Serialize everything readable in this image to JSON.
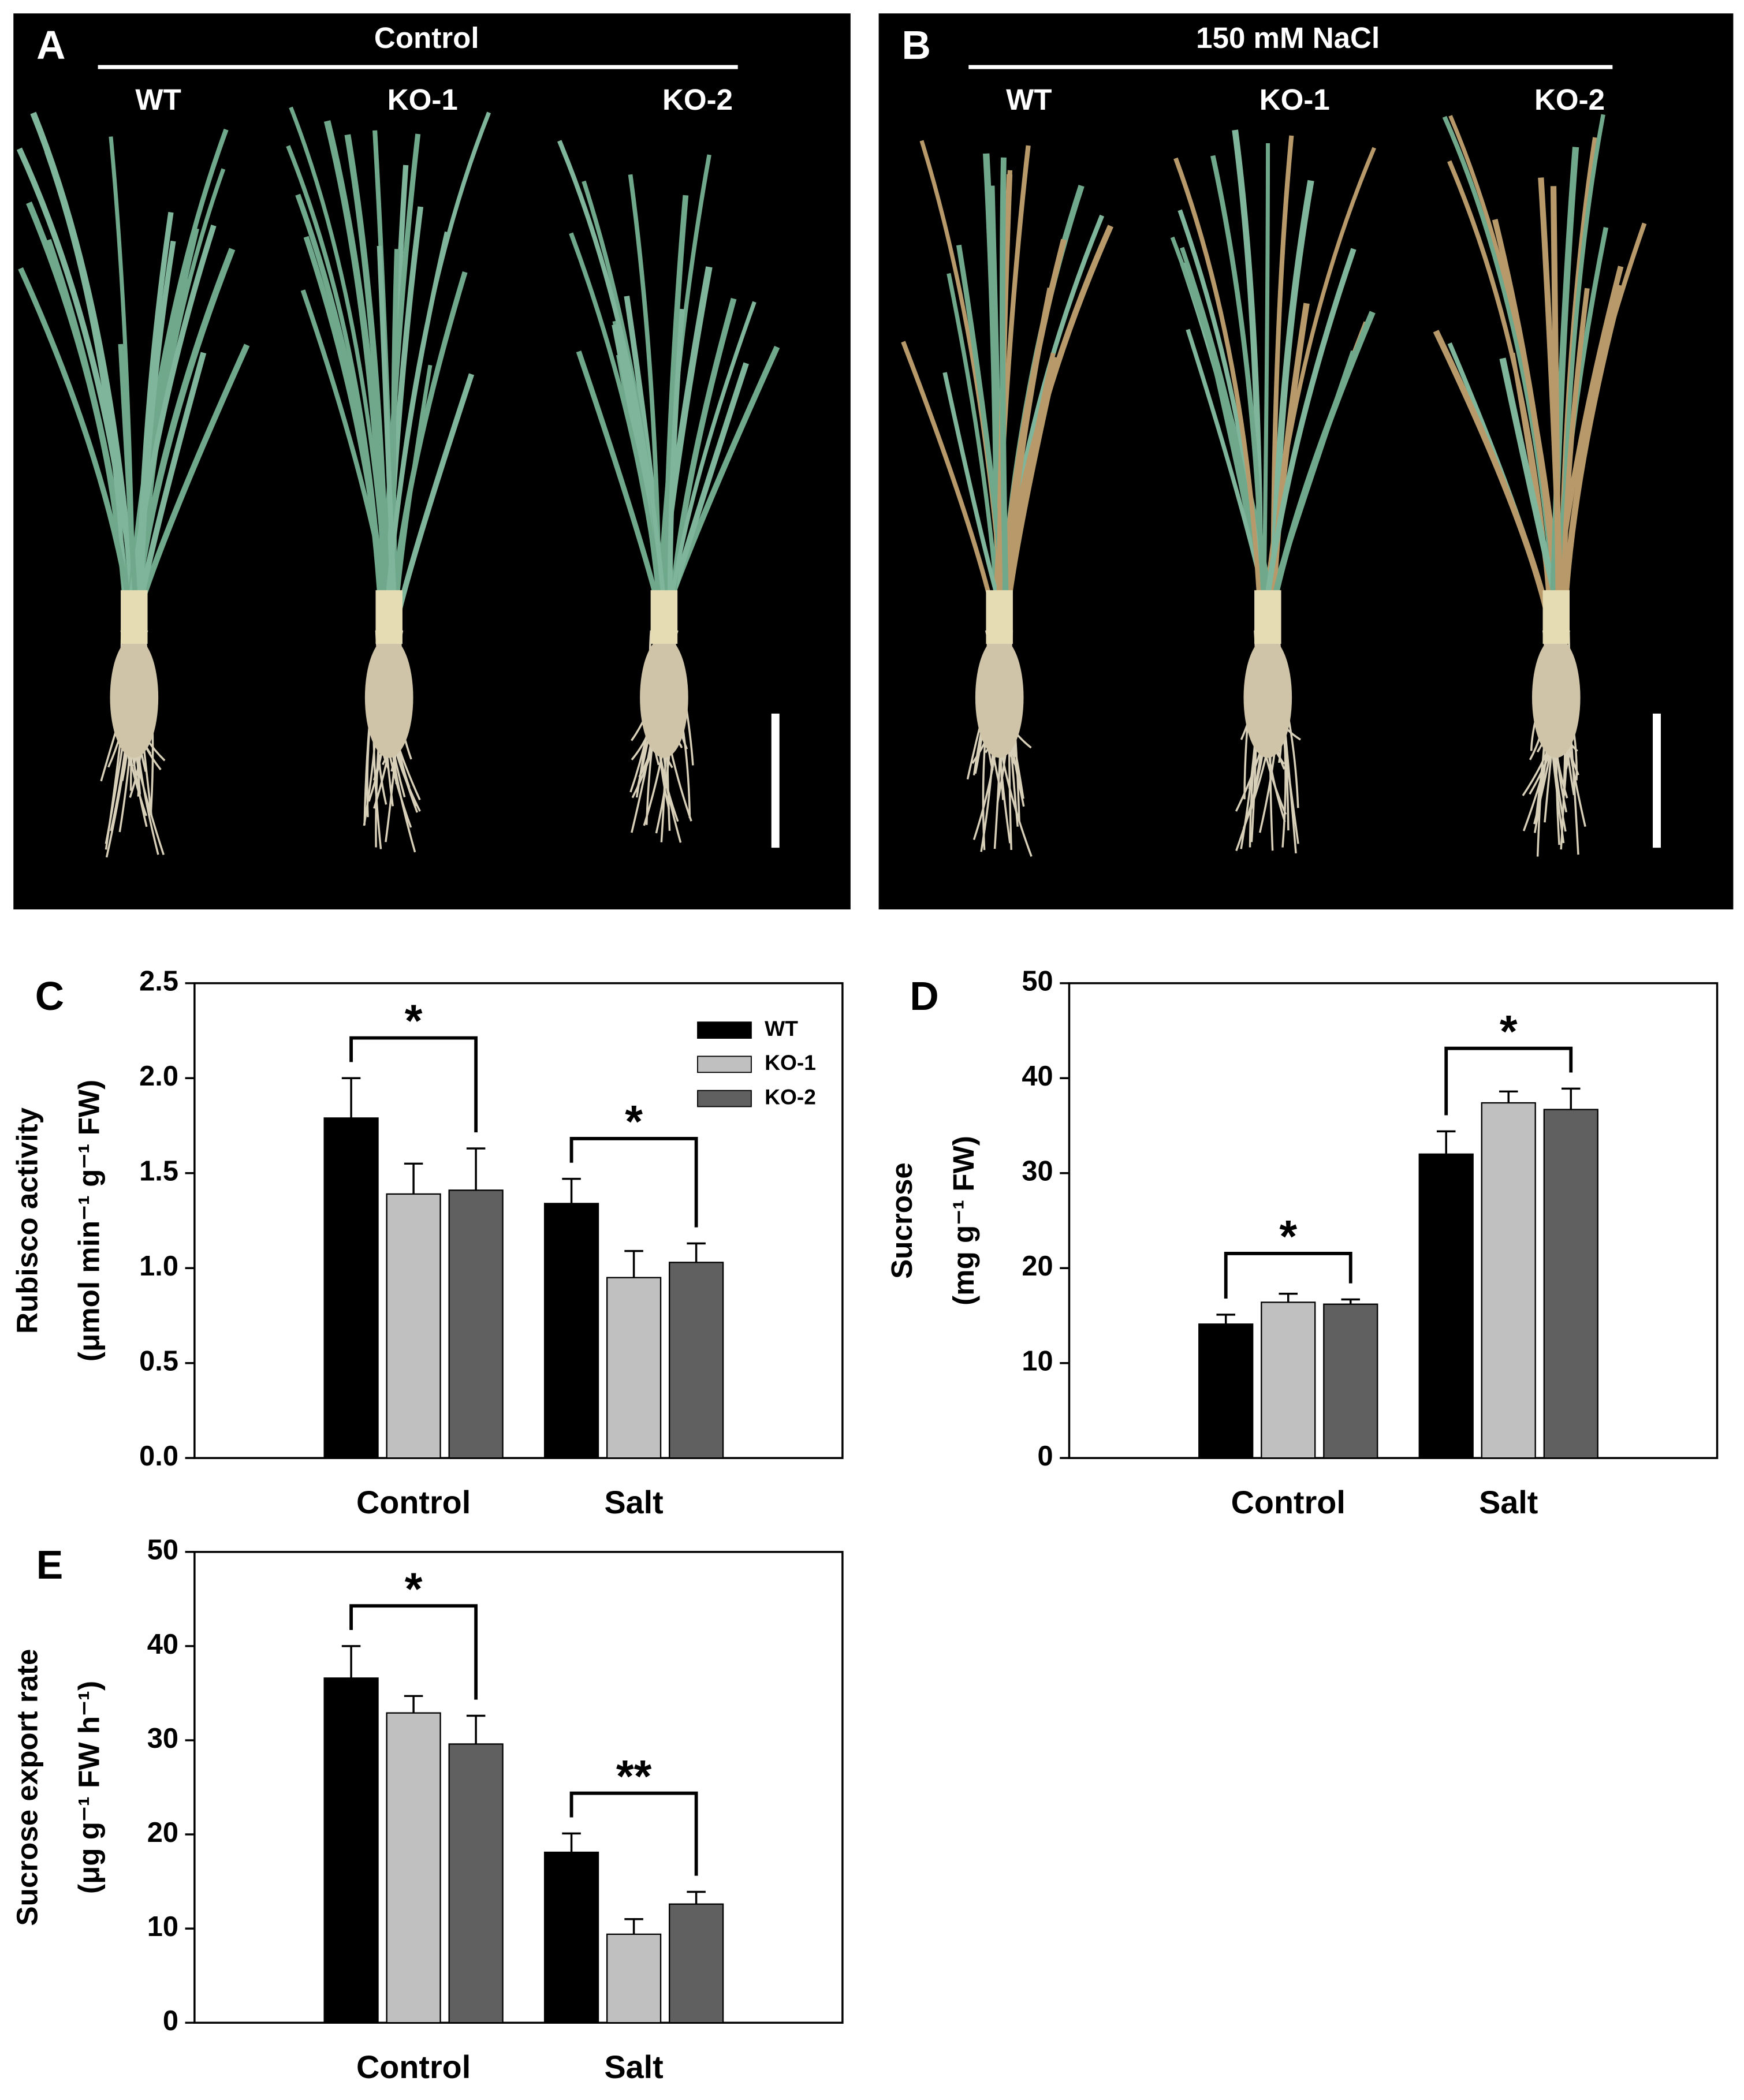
{
  "photo_panels": [
    {
      "label": "A",
      "condition": "Control",
      "genotypes": [
        "WT",
        "KO-1",
        "KO-2"
      ]
    },
    {
      "label": "B",
      "condition": "150 mM NaCl",
      "genotypes": [
        "WT",
        "KO-1",
        "KO-2"
      ]
    }
  ],
  "chart_data": [
    {
      "type": "bar",
      "panel_label": "C",
      "y_label": [
        "Rubisco activity",
        "(μmol min⁻¹ g⁻¹ FW)"
      ],
      "categories": [
        "Control",
        "Salt"
      ],
      "series": [
        {
          "name": "WT",
          "color": "#000000",
          "values": [
            1.79,
            1.34
          ],
          "errors": [
            0.21,
            0.13
          ]
        },
        {
          "name": "KO-1",
          "color": "#c0c0c0",
          "values": [
            1.39,
            0.95
          ],
          "errors": [
            0.16,
            0.14
          ]
        },
        {
          "name": "KO-2",
          "color": "#606060",
          "values": [
            1.41,
            1.03
          ],
          "errors": [
            0.22,
            0.1
          ]
        }
      ],
      "annotations": [
        "*",
        "*"
      ],
      "ylim": [
        0,
        2.5
      ],
      "yticks": [
        {
          "value": 0,
          "label": "0.0"
        },
        {
          "value": 0.5,
          "label": "0.5"
        },
        {
          "value": 1,
          "label": "1.0"
        },
        {
          "value": 1.5,
          "label": "1.5"
        },
        {
          "value": 2,
          "label": "2.0"
        },
        {
          "value": 2.5,
          "label": "2.5"
        }
      ],
      "legend": "upper right"
    },
    {
      "type": "bar",
      "panel_label": "D",
      "y_label": [
        "Sucrose",
        "(mg g⁻¹ FW)"
      ],
      "categories": [
        "Control",
        "Salt"
      ],
      "series": [
        {
          "color": "#000000",
          "values": [
            14.1,
            32.0
          ],
          "errors": [
            1.0,
            2.4
          ]
        },
        {
          "color": "#c0c0c0",
          "values": [
            16.4,
            37.4
          ],
          "errors": [
            0.9,
            1.2
          ]
        },
        {
          "color": "#606060",
          "values": [
            16.2,
            36.7
          ],
          "errors": [
            0.5,
            2.2
          ]
        }
      ],
      "annotations": [
        "*",
        "*"
      ],
      "ylim": [
        0,
        50
      ],
      "yticks": [
        0,
        10,
        20,
        30,
        40,
        50
      ]
    },
    {
      "type": "bar",
      "panel_label": "E",
      "y_label": [
        "Sucrose export rate",
        "(μg g⁻¹ FW h⁻¹)"
      ],
      "categories": [
        "Control",
        "Salt"
      ],
      "series": [
        {
          "color": "#000000",
          "values": [
            36.6,
            18.1
          ],
          "errors": [
            3.4,
            2.0
          ]
        },
        {
          "color": "#c0c0c0",
          "values": [
            32.9,
            9.4
          ],
          "errors": [
            1.8,
            1.6
          ]
        },
        {
          "color": "#606060",
          "values": [
            29.6,
            12.6
          ],
          "errors": [
            3.0,
            1.3
          ]
        }
      ],
      "annotations": [
        "*",
        "**"
      ],
      "ylim": [
        0,
        50
      ],
      "yticks": [
        0,
        10,
        20,
        30,
        40,
        50
      ]
    }
  ]
}
